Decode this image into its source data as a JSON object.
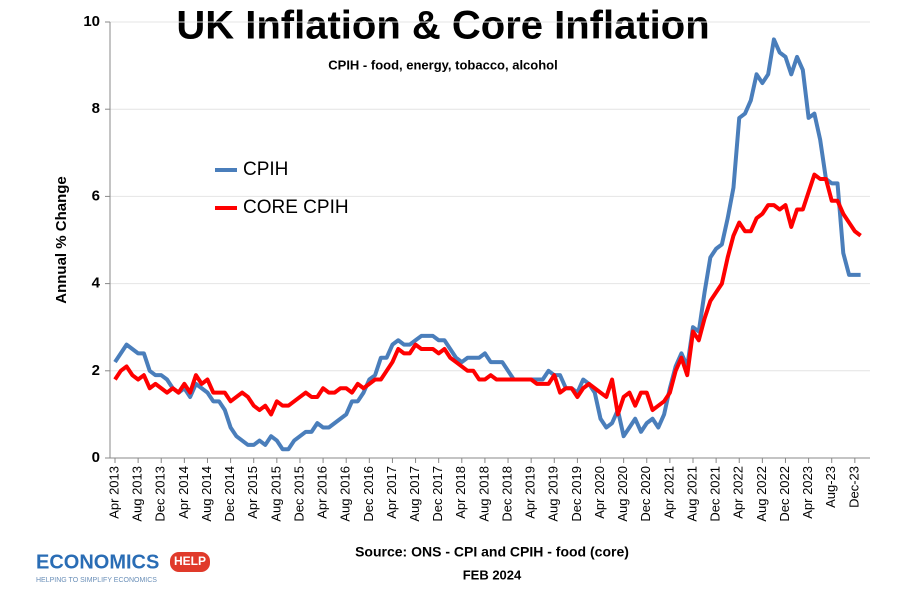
{
  "chart_data": {
    "type": "line",
    "title": "UK Inflation & Core Inflation",
    "subtitle": "CPIH - food, energy, tobacco, alcohol",
    "y_label": "Annual % Change",
    "source": "Source: ONS - CPI and CPIH - food (core)",
    "date": "FEB 2024",
    "ylim": [
      0,
      10
    ],
    "yticks": [
      0,
      2,
      4,
      6,
      8,
      10
    ],
    "grid": true,
    "legend": "upper left",
    "categories": [
      "Apr 2013",
      null,
      null,
      null,
      "Aug 2013",
      null,
      null,
      null,
      "Dec 2013",
      null,
      null,
      null,
      "Apr 2014",
      null,
      null,
      null,
      "Aug 2014",
      null,
      null,
      null,
      "Dec 2014",
      null,
      null,
      null,
      "Apr 2015",
      null,
      null,
      null,
      "Aug 2015",
      null,
      null,
      null,
      "Dec 2015",
      null,
      null,
      null,
      "Apr 2016",
      null,
      null,
      null,
      "Aug 2016",
      null,
      null,
      null,
      "Dec 2016",
      null,
      null,
      null,
      "Apr 2017",
      null,
      null,
      null,
      "Aug 2017",
      null,
      null,
      null,
      "Dec 2017",
      null,
      null,
      null,
      "Apr 2018",
      null,
      null,
      null,
      "Aug 2018",
      null,
      null,
      null,
      "Dec 2018",
      null,
      null,
      null,
      "Apr 2019",
      null,
      null,
      null,
      "Aug 2019",
      null,
      null,
      null,
      "Dec 2019",
      null,
      null,
      null,
      "Apr 2020",
      null,
      null,
      null,
      "Aug 2020",
      null,
      null,
      null,
      "Dec 2020",
      null,
      null,
      null,
      "Apr 2021",
      null,
      null,
      null,
      "Aug 2021",
      null,
      null,
      null,
      "Dec 2021",
      null,
      null,
      null,
      "Apr 2022",
      null,
      null,
      null,
      "Aug 2022",
      null,
      null,
      null,
      "Dec 2022",
      null,
      null,
      null,
      "Apr 2023",
      null,
      null,
      null,
      "Aug-23",
      null,
      null,
      null,
      "Dec-23",
      null
    ],
    "series": [
      {
        "name": "CPIH",
        "color": "#4a7ebb",
        "values": [
          2.2,
          2.4,
          2.6,
          2.5,
          2.4,
          2.4,
          2.0,
          1.9,
          1.9,
          1.8,
          1.6,
          1.5,
          1.6,
          1.4,
          1.7,
          1.6,
          1.5,
          1.3,
          1.3,
          1.1,
          0.7,
          0.5,
          0.4,
          0.3,
          0.3,
          0.4,
          0.3,
          0.5,
          0.4,
          0.2,
          0.2,
          0.4,
          0.5,
          0.6,
          0.6,
          0.8,
          0.7,
          0.7,
          0.8,
          0.9,
          1.0,
          1.3,
          1.3,
          1.5,
          1.8,
          1.9,
          2.3,
          2.3,
          2.6,
          2.7,
          2.6,
          2.6,
          2.7,
          2.8,
          2.8,
          2.8,
          2.7,
          2.7,
          2.5,
          2.3,
          2.2,
          2.3,
          2.3,
          2.3,
          2.4,
          2.2,
          2.2,
          2.2,
          2.0,
          1.8,
          1.8,
          1.8,
          1.8,
          1.8,
          1.8,
          2.0,
          1.9,
          1.9,
          1.6,
          1.6,
          1.5,
          1.8,
          1.7,
          1.5,
          0.9,
          0.7,
          0.8,
          1.1,
          0.5,
          0.7,
          0.9,
          0.6,
          0.8,
          0.9,
          0.7,
          1.0,
          1.6,
          2.1,
          2.4,
          2.1,
          3.0,
          2.9,
          3.8,
          4.6,
          4.8,
          4.9,
          5.5,
          6.2,
          7.8,
          7.9,
          8.2,
          8.8,
          8.6,
          8.8,
          9.6,
          9.3,
          9.2,
          8.8,
          9.2,
          8.9,
          7.8,
          7.9,
          7.3,
          6.4,
          6.3,
          6.3,
          4.7,
          4.2,
          4.2,
          4.2
        ]
      },
      {
        "name": "CORE CPIH",
        "color": "#ff0000",
        "values": [
          1.8,
          2.0,
          2.1,
          1.9,
          1.8,
          1.9,
          1.6,
          1.7,
          1.6,
          1.5,
          1.6,
          1.5,
          1.7,
          1.5,
          1.9,
          1.7,
          1.8,
          1.5,
          1.5,
          1.5,
          1.3,
          1.4,
          1.5,
          1.4,
          1.2,
          1.1,
          1.2,
          1.0,
          1.3,
          1.2,
          1.2,
          1.3,
          1.4,
          1.5,
          1.4,
          1.4,
          1.6,
          1.5,
          1.5,
          1.6,
          1.6,
          1.5,
          1.7,
          1.6,
          1.7,
          1.8,
          1.8,
          2.0,
          2.2,
          2.5,
          2.4,
          2.4,
          2.6,
          2.5,
          2.5,
          2.5,
          2.4,
          2.5,
          2.3,
          2.2,
          2.1,
          2.0,
          2.0,
          1.8,
          1.8,
          1.9,
          1.8,
          1.8,
          1.8,
          1.8,
          1.8,
          1.8,
          1.8,
          1.7,
          1.7,
          1.7,
          1.9,
          1.5,
          1.6,
          1.6,
          1.4,
          1.6,
          1.7,
          1.6,
          1.5,
          1.4,
          1.8,
          1.0,
          1.4,
          1.5,
          1.2,
          1.5,
          1.5,
          1.1,
          1.2,
          1.3,
          1.5,
          2.0,
          2.3,
          1.9,
          2.9,
          2.7,
          3.2,
          3.6,
          3.8,
          4.0,
          4.6,
          5.1,
          5.4,
          5.2,
          5.2,
          5.5,
          5.6,
          5.8,
          5.8,
          5.7,
          5.8,
          5.3,
          5.7,
          5.7,
          6.1,
          6.5,
          6.4,
          6.4,
          5.9,
          5.9,
          5.6,
          5.4,
          5.2,
          5.1
        ]
      }
    ]
  },
  "logo": {
    "word": "ECONOMICS",
    "badge": "HELP",
    "tagline": "HELPING TO SIMPLIFY ECONOMICS"
  }
}
